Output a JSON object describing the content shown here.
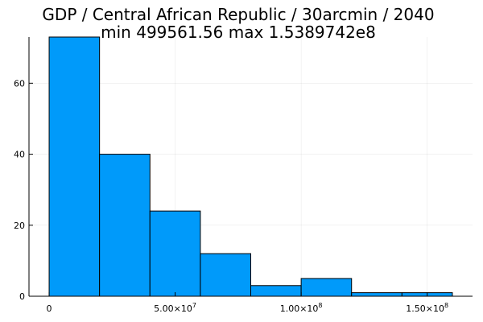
{
  "chart_data": {
    "type": "bar",
    "title_lines": [
      "GDP / Central African Republic / 30arcmin / 2040",
      "min 499561.56  max 1.5389742e8"
    ],
    "xlabel": "",
    "ylabel": "",
    "bin_edges": [
      0,
      20000000,
      40000000,
      60000000,
      80000000,
      100000000,
      120000000,
      140000000,
      160000000
    ],
    "values": [
      73,
      40,
      24,
      12,
      3,
      5,
      1,
      1
    ],
    "xlim": [
      -8000000,
      168000000
    ],
    "ylim": [
      0,
      73
    ],
    "x_ticks": [
      {
        "value": 0,
        "mantissa": "0",
        "exp": ""
      },
      {
        "value": 50000000,
        "mantissa": "5.00×10",
        "exp": "7"
      },
      {
        "value": 100000000,
        "mantissa": "1.00×10",
        "exp": "8"
      },
      {
        "value": 150000000,
        "mantissa": "1.50×10",
        "exp": "8"
      }
    ],
    "y_ticks": [
      0,
      20,
      40,
      60
    ],
    "grid": true,
    "legend": "none",
    "bar_color": "#009AFA",
    "bar_edge_color": "#000000"
  }
}
